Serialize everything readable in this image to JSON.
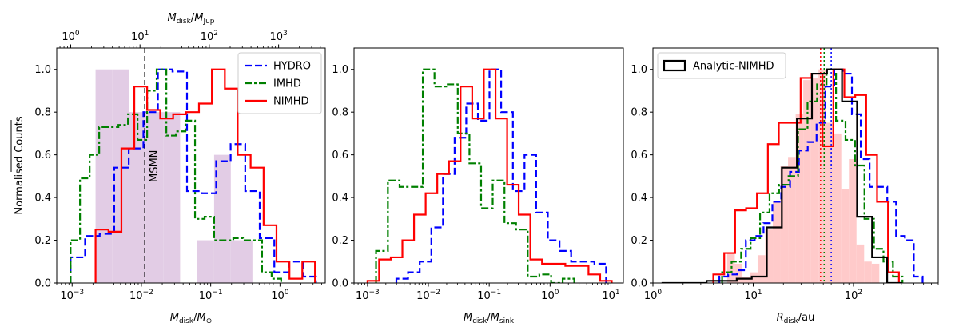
{
  "colors": {
    "hydro": "#0000ff",
    "imhd": "#008000",
    "nimhd": "#ff0000",
    "analytic": "#000000",
    "obs_mass": "#e2cce5",
    "obs_radius": "#ffcaca"
  },
  "chart_data": [
    {
      "type": "histogram",
      "xscale": "log",
      "xlim": [
        0.0006,
        4.5
      ],
      "ylim": [
        0,
        1.1
      ],
      "ylabel": "Normalised Counts",
      "xlabel": "M_disk/M☉",
      "xlabel_parts": [
        "M",
        "disk",
        "/M",
        "⊙"
      ],
      "xticks": [
        {
          "value": 0.001,
          "base": "10",
          "exp": "−3"
        },
        {
          "value": 0.01,
          "base": "10",
          "exp": "−2"
        },
        {
          "value": 0.1,
          "base": "10",
          "exp": "−1"
        },
        {
          "value": 1,
          "base": "10",
          "exp": "0"
        }
      ],
      "yticks": [
        "0.0",
        "0.2",
        "0.4",
        "0.6",
        "0.8",
        "1.0"
      ],
      "top_axis": {
        "label": "M_disk/M_Jup",
        "label_parts": [
          "M",
          "disk",
          "/M",
          "Jup"
        ],
        "scale_factor": 1047.6,
        "ticks": [
          {
            "value": 1,
            "base": "10",
            "exp": "0"
          },
          {
            "value": 10,
            "base": "10",
            "exp": "1"
          },
          {
            "value": 100,
            "base": "10",
            "exp": "2"
          },
          {
            "value": 1000,
            "base": "10",
            "exp": "3"
          }
        ]
      },
      "reference_line": {
        "x": 0.0112,
        "label": "MSMN"
      },
      "legend": {
        "location": "upper right",
        "entries": [
          "HYDRO",
          "IMHD",
          "NIMHD"
        ]
      },
      "bars": {
        "edges": [
          0.00218,
          0.00382,
          0.0067,
          0.0117,
          0.0206,
          0.0362,
          0.0635,
          0.112,
          0.195,
          0.4
        ],
        "values": [
          1.0,
          1.0,
          0.8,
          0.8,
          0.8,
          0,
          0.2,
          0.6,
          0.2
        ]
      },
      "series": [
        {
          "name": "HYDRO",
          "style": "dashed",
          "color_key": "hydro",
          "edges": [
            0.00095,
            0.00154,
            0.0025,
            0.00405,
            0.00657,
            0.0107,
            0.0173,
            0.0281,
            0.0455,
            0.0739,
            0.12,
            0.194,
            0.315,
            0.51,
            0.828,
            1.34,
            2.18,
            3.3
          ],
          "values": [
            0.12,
            0.22,
            0.23,
            0.54,
            0.63,
            0.8,
            1.0,
            0.99,
            0.43,
            0.42,
            0.57,
            0.65,
            0.43,
            0.21,
            0.05,
            0.1,
            0.03
          ]
        },
        {
          "name": "IMHD",
          "style": "dashdot",
          "color_key": "imhd",
          "edges": [
            0.00095,
            0.0013,
            0.00179,
            0.00246,
            0.00339,
            0.00466,
            0.0064,
            0.0088,
            0.0121,
            0.0166,
            0.0229,
            0.0315,
            0.0432,
            0.0594,
            0.0817,
            0.112,
            0.154,
            0.212,
            0.292,
            0.401,
            0.551,
            0.757,
            1.04
          ],
          "values": [
            0.2,
            0.49,
            0.6,
            0.73,
            0.73,
            0.74,
            0.79,
            0.67,
            0.9,
            1.0,
            0.69,
            0.71,
            0.76,
            0.3,
            0.31,
            0.2,
            0.2,
            0.21,
            0.2,
            0.2,
            0.05,
            0.02
          ]
        },
        {
          "name": "NIMHD",
          "style": "solid",
          "color_key": "nimhd",
          "edges": [
            0.00218,
            0.00335,
            0.00515,
            0.0079,
            0.0121,
            0.0187,
            0.0287,
            0.044,
            0.0677,
            0.104,
            0.16,
            0.245,
            0.377,
            0.58,
            0.89,
            1.37,
            2.1,
            3.2
          ],
          "values": [
            0.25,
            0.24,
            0.63,
            0.92,
            0.81,
            0.77,
            0.79,
            0.8,
            0.84,
            1.0,
            0.91,
            0.6,
            0.54,
            0.27,
            0.1,
            0.02,
            0.1
          ]
        }
      ]
    },
    {
      "type": "histogram",
      "xscale": "log",
      "xlim": [
        0.0006,
        16
      ],
      "ylim": [
        0,
        1.1
      ],
      "xlabel": "M_disk/M_sink",
      "xlabel_parts": [
        "M",
        "disk",
        "/M",
        "sink"
      ],
      "xticks": [
        {
          "value": 0.001,
          "base": "10",
          "exp": "−3"
        },
        {
          "value": 0.01,
          "base": "10",
          "exp": "−2"
        },
        {
          "value": 0.1,
          "base": "10",
          "exp": "−1"
        },
        {
          "value": 1,
          "base": "10",
          "exp": "0"
        },
        {
          "value": 10,
          "base": "10",
          "exp": "1"
        }
      ],
      "yticks": [
        "0.0",
        "0.2",
        "0.4",
        "0.6",
        "0.8",
        "1.0"
      ],
      "series": [
        {
          "name": "HYDRO",
          "style": "dashed",
          "color_key": "hydro",
          "edges": [
            0.00298,
            0.00463,
            0.0072,
            0.0112,
            0.0174,
            0.027,
            0.0419,
            0.0652,
            0.101,
            0.157,
            0.245,
            0.38,
            0.59,
            0.918,
            1.43,
            2.22,
            3.45,
            5.36,
            8.33
          ],
          "values": [
            0.02,
            0.05,
            0.1,
            0.26,
            0.51,
            0.68,
            0.84,
            0.76,
            1.0,
            0.8,
            0.43,
            0.6,
            0.33,
            0.2,
            0.15,
            0.1,
            0.1,
            0.09
          ]
        },
        {
          "name": "IMHD",
          "style": "dashdot",
          "color_key": "imhd",
          "edges": [
            0.00138,
            0.00216,
            0.00336,
            0.00521,
            0.0081,
            0.0126,
            0.0196,
            0.0304,
            0.0473,
            0.0735,
            0.114,
            0.178,
            0.276,
            0.429,
            0.667,
            1.04,
            1.61,
            2.5
          ],
          "values": [
            0.15,
            0.48,
            0.45,
            0.45,
            1.0,
            0.92,
            0.93,
            0.7,
            0.56,
            0.35,
            0.48,
            0.28,
            0.25,
            0.03,
            0.04,
            0.0,
            0.02
          ]
        },
        {
          "name": "NIMHD",
          "style": "solid",
          "color_key": "nimhd",
          "edges": [
            0.001,
            0.00155,
            0.00241,
            0.00374,
            0.00581,
            0.00902,
            0.014,
            0.0218,
            0.0338,
            0.0525,
            0.0815,
            0.127,
            0.197,
            0.305,
            0.474,
            0.737,
            1.14,
            1.78,
            2.76,
            4.28,
            6.65,
            10.3
          ],
          "values": [
            0.01,
            0.11,
            0.12,
            0.2,
            0.32,
            0.42,
            0.51,
            0.57,
            0.92,
            0.77,
            1.0,
            0.77,
            0.46,
            0.32,
            0.11,
            0.09,
            0.09,
            0.08,
            0.08,
            0.04,
            0.01
          ]
        }
      ]
    },
    {
      "type": "histogram",
      "xscale": "log",
      "xlim": [
        1,
        700
      ],
      "ylim": [
        0,
        1.1
      ],
      "xlabel": "R_disk/au",
      "xlabel_parts": [
        "R",
        "disk",
        "/au",
        ""
      ],
      "xticks": [
        {
          "value": 1,
          "base": "10",
          "exp": "0"
        },
        {
          "value": 10,
          "base": "10",
          "exp": "1"
        },
        {
          "value": 100,
          "base": "10",
          "exp": "2"
        }
      ],
      "yticks": [
        "0.0",
        "0.2",
        "0.4",
        "0.6",
        "0.8",
        "1.0"
      ],
      "legend": {
        "location": "upper left",
        "entries": [
          "Analytic-NIMHD"
        ]
      },
      "vlines": [
        {
          "x": 47,
          "color_key": "nimhd"
        },
        {
          "x": 51,
          "color_key": "imhd"
        },
        {
          "x": 60,
          "color_key": "hydro"
        }
      ],
      "bars": {
        "edges": [
          5.5,
          6.55,
          7.8,
          9.29,
          11.06,
          13.17,
          15.69,
          18.68,
          22.25,
          26.5,
          31.56,
          37.58,
          44.76,
          53.3,
          63.48,
          75.6,
          90.04,
          107.2,
          127.7,
          152.1,
          181.1,
          215.7
        ],
        "values": [
          0.14,
          0.09,
          0.03,
          0.05,
          0.13,
          0.25,
          0.38,
          0.55,
          0.59,
          0.79,
          0.95,
          0.96,
          1.0,
          0.75,
          0.7,
          0.44,
          0.58,
          0.18,
          0.1,
          0.09,
          0.0
        ]
      },
      "series": [
        {
          "name": "HYDRO",
          "style": "dashed",
          "color_key": "hydro",
          "edges": [
            4.6,
            5.63,
            6.9,
            8.45,
            10.35,
            12.68,
            15.53,
            19.03,
            23.3,
            28.55,
            34.97,
            42.84,
            52.48,
            64.29,
            78.75,
            96.47,
            118.2,
            144.8,
            177.3,
            217.2,
            266.1,
            326,
            399.3,
            489.2
          ],
          "values": [
            0.03,
            0.04,
            0.06,
            0.2,
            0.22,
            0.28,
            0.38,
            0.45,
            0.52,
            0.62,
            0.66,
            0.75,
            0.92,
            1.0,
            0.98,
            0.79,
            0.58,
            0.45,
            0.45,
            0.38,
            0.22,
            0.2,
            0.03
          ]
        },
        {
          "name": "IMHD",
          "style": "dashdot",
          "color_key": "imhd",
          "edges": [
            4.9,
            6.09,
            7.58,
            9.42,
            11.71,
            14.56,
            18.11,
            22.52,
            28.0,
            34.82,
            43.3,
            53.85,
            66.96,
            83.27,
            103.5,
            128.7,
            160.1,
            199.1,
            247.6,
            307.9
          ],
          "values": [
            0.05,
            0.1,
            0.16,
            0.21,
            0.33,
            0.42,
            0.46,
            0.5,
            0.72,
            0.85,
            0.93,
            1.0,
            0.76,
            0.67,
            0.55,
            0.3,
            0.16,
            0.1,
            0.03
          ]
        },
        {
          "name": "NIMHD",
          "style": "solid",
          "color_key": "nimhd",
          "edges": [
            4.0,
            5.14,
            6.6,
            8.49,
            10.9,
            14.01,
            18.0,
            23.13,
            29.72,
            38.2,
            49.08,
            63.07,
            81.04,
            104.1,
            133.8,
            171.9,
            221.0,
            284.0
          ],
          "values": [
            0.04,
            0.14,
            0.34,
            0.35,
            0.42,
            0.65,
            0.75,
            0.75,
            0.96,
            0.98,
            0.64,
            1.0,
            0.87,
            0.88,
            0.6,
            0.38,
            0.05
          ]
        },
        {
          "name": "Analytic-NIMHD",
          "style": "solid",
          "color_key": "analytic",
          "edges": [
            1.22,
            1.72,
            2.43,
            3.43,
            4.85,
            6.85,
            9.68,
            13.67,
            19.31,
            27.28,
            38.53,
            54.43,
            76.88,
            108.6,
            153.4,
            216.7,
            306.1
          ],
          "values": [
            0.0,
            0.0,
            0.0,
            0.01,
            0.01,
            0.02,
            0.03,
            0.26,
            0.54,
            0.77,
            0.98,
            1.0,
            0.85,
            0.31,
            0.12,
            0.0
          ]
        }
      ]
    }
  ]
}
